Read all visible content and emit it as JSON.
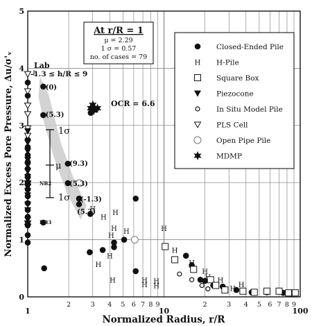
{
  "chart_data": {
    "type": "scatter",
    "xlabel": "Normalized Radius, r/R",
    "ylabel": "Normalized Excess Pore Pressure, Δu/σ'ᵥ",
    "xscale": "log",
    "xlim": [
      1,
      100
    ],
    "ylim": [
      0,
      5
    ],
    "grid": true,
    "legend_position": "top-right",
    "x_ticks": [
      "1",
      "2",
      "3",
      "4",
      "5",
      "6",
      "7",
      "8",
      "9",
      "10",
      "2",
      "3",
      "4",
      "5",
      "6",
      "7",
      "8",
      "9",
      "100"
    ],
    "x_major_labels": [
      "1",
      "10",
      "100"
    ],
    "y_ticks": [
      "0",
      "1",
      "2",
      "3",
      "4",
      "5"
    ],
    "stats_box": {
      "title": "At r/R = 1",
      "lines": [
        "μ = 2.29",
        "1 σ = 0.57",
        "no. of cases = 79"
      ]
    },
    "annotations": {
      "lab": "Lab",
      "lab_range": "-1.3 ≤ h/R ≤ 9",
      "ocr": "OCR = 6.6",
      "plus_sigma": "1σ",
      "mu": "μ",
      "minus_sigma": "1σ",
      "nb2": "NB2",
      "nb3": "NB3",
      "h_labels": [
        {
          "text": "(0)",
          "x": 1.35,
          "y": 3.68
        },
        {
          "text": "(5.3)",
          "x": 1.35,
          "y": 3.2
        },
        {
          "text": "(9.3)",
          "x": 2.02,
          "y": 2.34
        },
        {
          "text": "(5.3)",
          "x": 2.02,
          "y": 1.99
        },
        {
          "text": "(-1.3)",
          "x": 2.43,
          "y": 1.72
        },
        {
          "text": "(5.3)",
          "x": 2.3,
          "y": 1.5
        }
      ]
    },
    "legend": [
      {
        "marker": "filled-circle",
        "label": "Closed-Ended Pile"
      },
      {
        "marker": "H",
        "label": "H-Pile"
      },
      {
        "marker": "open-square",
        "label": "Square Box"
      },
      {
        "marker": "filled-triangle-down",
        "label": "Piezocone"
      },
      {
        "marker": "small-open-circle",
        "label": "In Situ Model Pile"
      },
      {
        "marker": "open-triangle-down",
        "label": "PLS Cell"
      },
      {
        "marker": "large-open-circle",
        "label": "Open Pipe Pile"
      },
      {
        "marker": "star",
        "label": "MDMP"
      }
    ],
    "series": [
      {
        "name": "Closed-Ended Pile",
        "marker": "filled-circle",
        "points": [
          [
            1.0,
            3.75
          ],
          [
            1.0,
            3.52
          ],
          [
            1.0,
            2.75
          ],
          [
            1.0,
            2.62
          ],
          [
            1.0,
            2.48
          ],
          [
            1.0,
            2.36
          ],
          [
            1.0,
            2.24
          ],
          [
            1.0,
            2.12
          ],
          [
            1.0,
            2.0
          ],
          [
            1.0,
            1.88
          ],
          [
            1.0,
            1.76
          ],
          [
            1.0,
            1.64
          ],
          [
            1.0,
            1.52
          ],
          [
            1.0,
            1.4
          ],
          [
            1.0,
            1.25
          ],
          [
            1.0,
            1.08
          ],
          [
            1.0,
            0.95
          ],
          [
            1.3,
            3.68
          ],
          [
            1.3,
            3.18
          ],
          [
            1.3,
            1.3
          ],
          [
            1.32,
            0.5
          ],
          [
            1.97,
            2.33
          ],
          [
            1.97,
            1.99
          ],
          [
            2.38,
            1.72
          ],
          [
            2.38,
            1.62
          ],
          [
            2.88,
            1.45
          ],
          [
            2.9,
            3.22
          ],
          [
            3.15,
            3.28
          ],
          [
            2.85,
            0.78
          ],
          [
            3.55,
            0.82
          ],
          [
            4.3,
            0.95
          ],
          [
            4.3,
            0.87
          ],
          [
            5.1,
            1.0
          ],
          [
            6.2,
            1.72
          ],
          [
            6.2,
            0.45
          ],
          [
            14.5,
            0.72
          ],
          [
            16.0,
            0.55
          ],
          [
            18.5,
            0.3
          ],
          [
            20.0,
            0.28
          ],
          [
            23.0,
            0.2
          ],
          [
            27.0,
            0.18
          ],
          [
            34.0,
            0.12
          ],
          [
            44.0,
            0.08
          ],
          [
            57.0,
            0.08
          ],
          [
            75.0,
            0.07
          ],
          [
            85.0,
            0.06
          ]
        ]
      },
      {
        "name": "H-Pile",
        "marker": "H",
        "points": [
          [
            3.0,
            1.55
          ],
          [
            3.6,
            1.4
          ],
          [
            4.4,
            1.48
          ],
          [
            4.3,
            1.2
          ],
          [
            4.1,
            1.08
          ],
          [
            5.3,
            1.15
          ],
          [
            4.0,
            0.72
          ],
          [
            3.3,
            0.57
          ],
          [
            4.2,
            0.3
          ],
          [
            7.2,
            0.3
          ],
          [
            7.2,
            0.22
          ],
          [
            8.8,
            0.28
          ],
          [
            8.8,
            0.2
          ],
          [
            10.0,
            1.2
          ],
          [
            12.0,
            0.82
          ],
          [
            16.0,
            0.6
          ],
          [
            20.0,
            0.45
          ],
          [
            21.0,
            0.35
          ],
          [
            26.0,
            0.3
          ],
          [
            37.0,
            0.22
          ],
          [
            32.0,
            0.15
          ]
        ]
      },
      {
        "name": "Square Box",
        "marker": "open-square",
        "points": [
          [
            10.2,
            0.88
          ],
          [
            12.0,
            0.65
          ],
          [
            16.5,
            0.48
          ],
          [
            22.0,
            0.3
          ],
          [
            24.0,
            0.2
          ],
          [
            28.0,
            0.12
          ],
          [
            38.0,
            0.1
          ],
          [
            46.0,
            0.08
          ],
          [
            57.0,
            0.1
          ],
          [
            70.0,
            0.1
          ],
          [
            82.0,
            0.07
          ],
          [
            92.0,
            0.07
          ]
        ]
      },
      {
        "name": "In Situ Model Pile",
        "marker": "small-open-circle",
        "points": [
          [
            13.0,
            0.4
          ],
          [
            16.0,
            0.3
          ],
          [
            19.0,
            0.2
          ],
          [
            21.0,
            0.14
          ]
        ]
      },
      {
        "name": "Open Pipe Pile",
        "marker": "large-open-circle",
        "points": [
          [
            2.4,
            1.99
          ],
          [
            6.1,
            1.0
          ]
        ]
      },
      {
        "name": "PLS Cell",
        "marker": "open-triangle-down",
        "points": [
          [
            1.0,
            3.9
          ],
          [
            1.0,
            3.6
          ],
          [
            1.0,
            3.35
          ],
          [
            1.0,
            3.2
          ],
          [
            1.0,
            2.95
          ],
          [
            1.0,
            2.82
          ]
        ]
      },
      {
        "name": "Piezocone",
        "marker": "filled-triangle-down",
        "points": [
          [
            1.0,
            2.9
          ],
          [
            1.0,
            2.7
          ],
          [
            1.0,
            2.55
          ],
          [
            1.0,
            2.4
          ],
          [
            1.0,
            2.3
          ],
          [
            1.0,
            2.2
          ],
          [
            1.0,
            2.1
          ],
          [
            1.0,
            2.05
          ],
          [
            1.0,
            1.98
          ],
          [
            1.0,
            1.92
          ],
          [
            1.0,
            1.85
          ],
          [
            1.0,
            1.78
          ],
          [
            1.0,
            1.62
          ],
          [
            1.0,
            1.52
          ],
          [
            1.0,
            1.35
          ],
          [
            1.0,
            1.28
          ]
        ]
      },
      {
        "name": "MDMP",
        "marker": "star",
        "points": [
          [
            1.0,
            2.0
          ],
          [
            1.0,
            1.3
          ],
          [
            2.9,
            3.3
          ],
          [
            3.0,
            3.36
          ],
          [
            3.25,
            3.3
          ],
          [
            3.05,
            3.26
          ]
        ]
      }
    ]
  }
}
